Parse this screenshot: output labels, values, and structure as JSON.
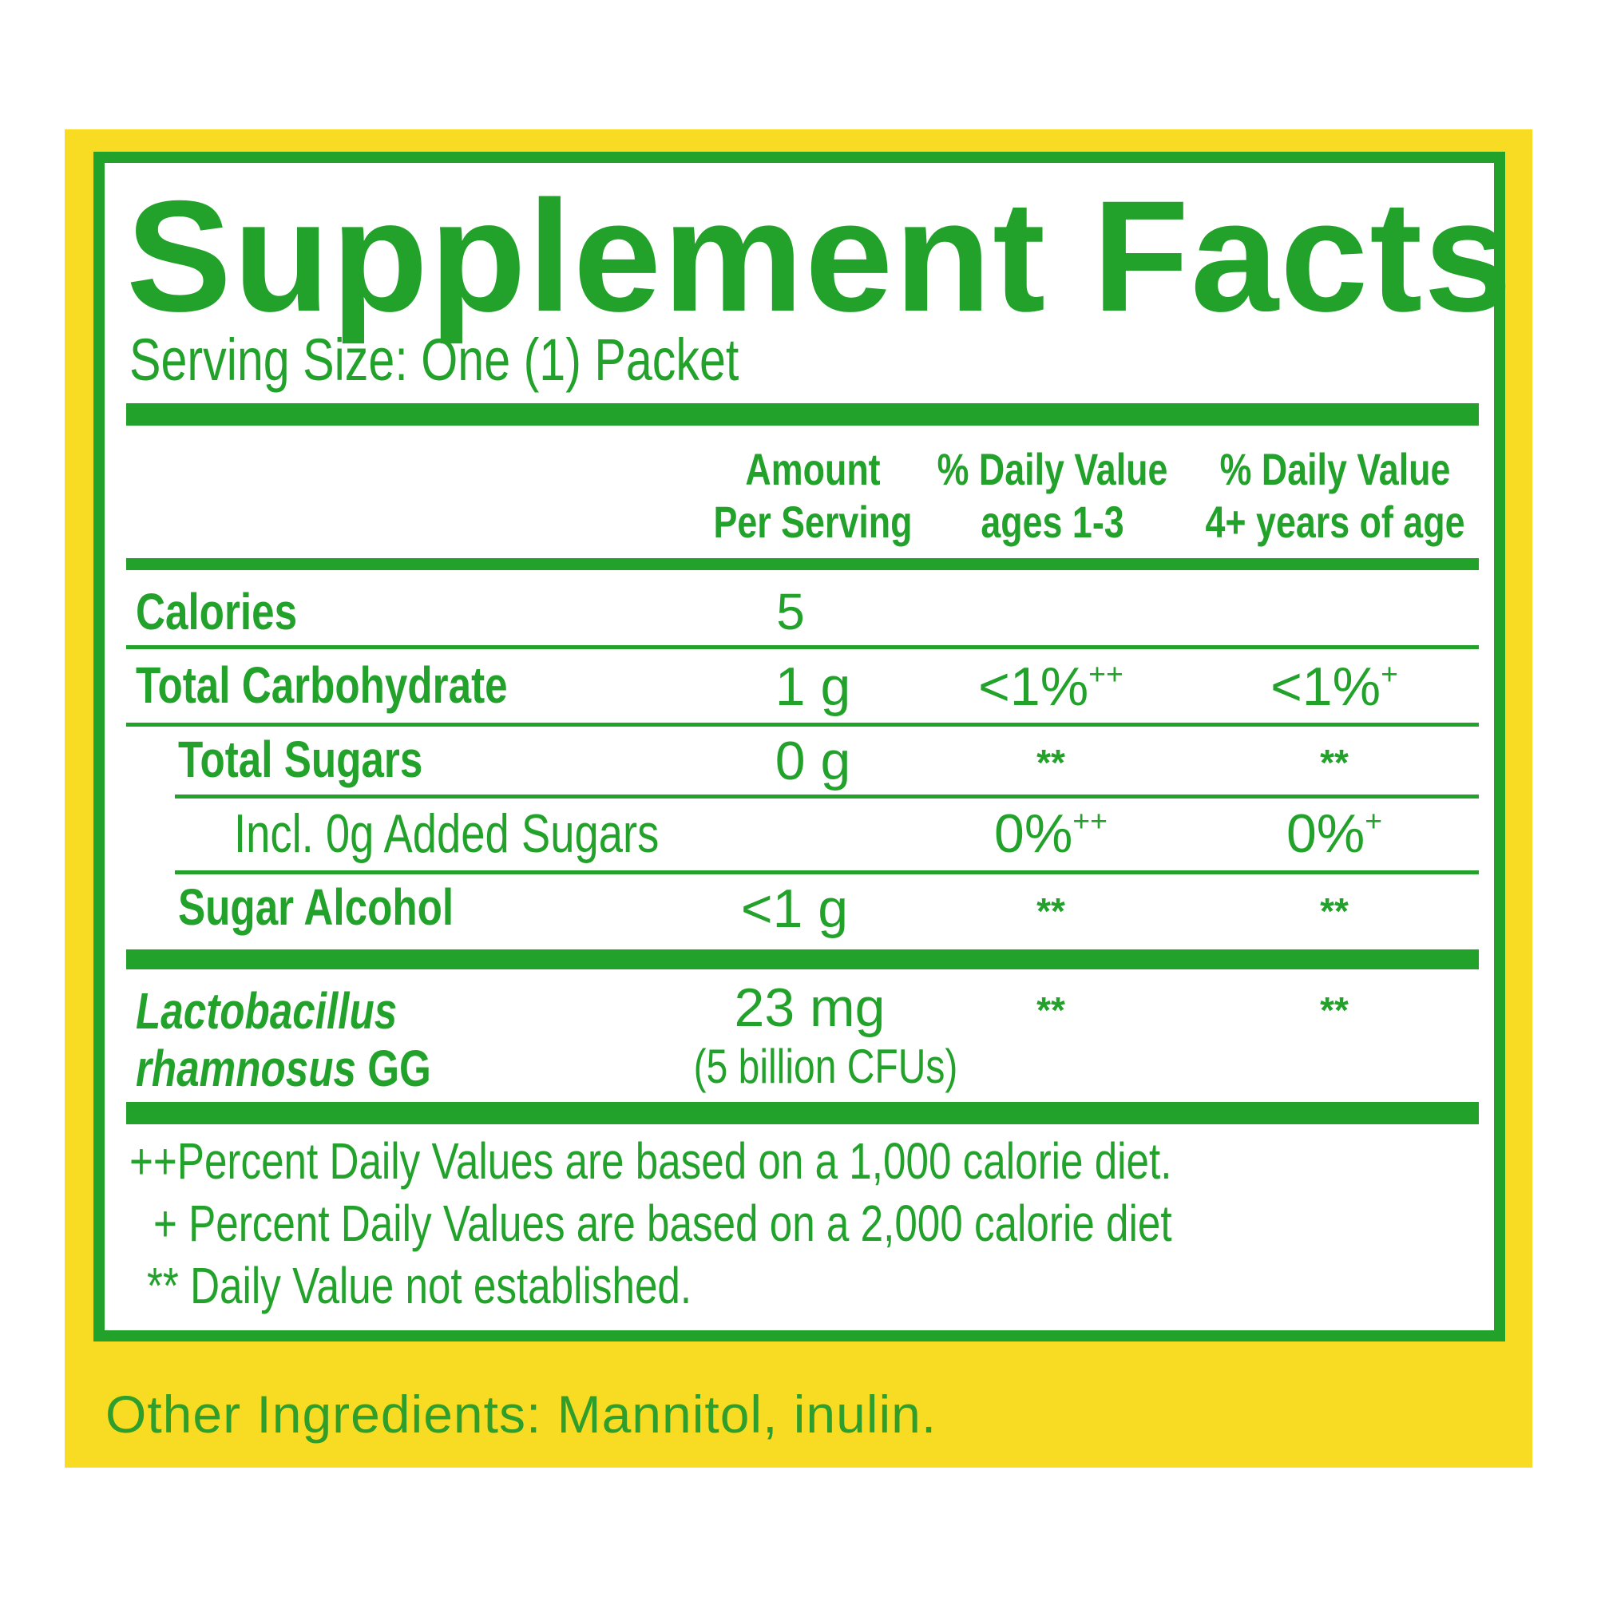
{
  "title": "Supplement Facts",
  "serving_size": "Serving Size: One (1) Packet",
  "columns": {
    "amount": [
      "Amount",
      "Per Serving"
    ],
    "dv_1_3": [
      "% Daily Value",
      "ages 1-3"
    ],
    "dv_4plus": [
      "% Daily Value",
      "4+ years of age"
    ]
  },
  "rows": [
    {
      "label": "Calories",
      "amount": "5",
      "dv1": "",
      "dv1_mark": "",
      "dv2": "",
      "dv2_mark": ""
    },
    {
      "label": "Total Carbohydrate",
      "amount": "1 g",
      "dv1": "<1%",
      "dv1_mark": "++",
      "dv2": "<1%",
      "dv2_mark": "+"
    },
    {
      "label": "Total Sugars",
      "amount": "0 g",
      "dv1": "**",
      "dv1_mark": "",
      "dv2": "**",
      "dv2_mark": ""
    },
    {
      "label": "Incl. 0g Added Sugars",
      "amount": "",
      "dv1": "0%",
      "dv1_mark": "++",
      "dv2": "0%",
      "dv2_mark": "+"
    },
    {
      "label": "Sugar Alcohol",
      "amount": "<1 g",
      "dv1": "**",
      "dv1_mark": "",
      "dv2": "**",
      "dv2_mark": ""
    }
  ],
  "probiotic": {
    "label_italic_1": "Lactobacillus",
    "label_italic_2": "rhamnosus",
    "label_suffix": " GG",
    "amount": "23 mg",
    "amount_note": "(5 billion CFUs)",
    "dv1": "**",
    "dv2": "**"
  },
  "footnotes": [
    {
      "mark": "++",
      "text": "Percent Daily Values are based on a 1,000 calorie diet."
    },
    {
      "mark": "+",
      "text": "Percent Daily Values are based on a 2,000 calorie diet"
    },
    {
      "mark": "**",
      "text": "Daily Value not established."
    }
  ],
  "other_ingredients": "Other Ingredients: Mannitol, inulin.",
  "colors": {
    "green": "#22a22b",
    "yellow": "#f8dc24",
    "background": "#ffffff"
  }
}
